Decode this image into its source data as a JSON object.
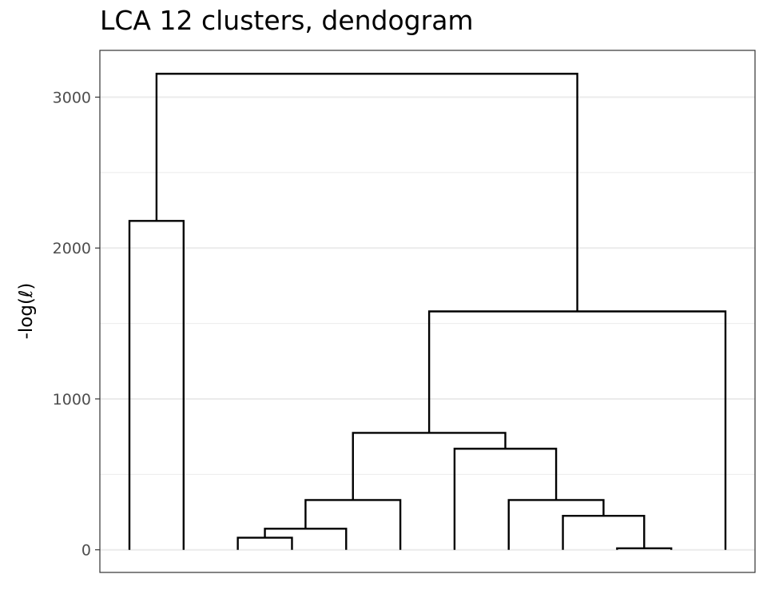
{
  "chart_data": {
    "type": "dendrogram",
    "title": "LCA 12 clusters, dendogram",
    "xlabel": "",
    "ylabel": "-log(ℓ)",
    "ylim": [
      -150,
      3310
    ],
    "yticks": [
      0,
      1000,
      2000,
      3000
    ],
    "ytick_labels": [
      "0",
      "1000",
      "2000",
      "3000"
    ],
    "grid": true,
    "leaves": 12,
    "merges": [
      {
        "left": 1,
        "right": 2,
        "height": 2180
      },
      {
        "left": 3,
        "right": 4,
        "height": 80
      },
      {
        "left": 3.5,
        "right": 5,
        "height": 140
      },
      {
        "left": 4.25,
        "right": 6,
        "height": 330
      },
      {
        "left": 10,
        "right": 11,
        "height": 10
      },
      {
        "left": 9,
        "right": 10.5,
        "height": 225
      },
      {
        "left": 8,
        "right": 9.75,
        "height": 330
      },
      {
        "left": 7,
        "right": 8.875,
        "height": 670
      },
      {
        "left": 5.125,
        "right": 7.9375,
        "height": 775
      },
      {
        "left": 6.53125,
        "right": 12,
        "height": 1580
      },
      {
        "left": 1.5,
        "right": 9.265625,
        "height": 3155
      }
    ]
  }
}
